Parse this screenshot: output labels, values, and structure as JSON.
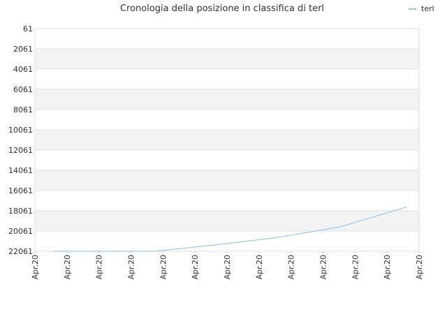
{
  "chart_data": {
    "type": "line",
    "title": "Cronologia della posizione in classifica di terl",
    "xlabel": "",
    "ylabel": "",
    "y_inverted": true,
    "ylim": [
      61,
      22061
    ],
    "y_ticks": [
      "61",
      "2061",
      "4061",
      "6061",
      "8061",
      "10061",
      "12061",
      "14061",
      "16061",
      "18061",
      "20061",
      "22061"
    ],
    "x_ticks": [
      "Apr.20",
      "Apr.20",
      "Apr.20",
      "Apr.20",
      "Apr.20",
      "Apr.20",
      "Apr.20",
      "Apr.20",
      "Apr.20",
      "Apr.20",
      "Apr.20",
      "Apr.20",
      "Apr.20"
    ],
    "grid": true,
    "legend_position": "top-right",
    "series": [
      {
        "name": "terl",
        "color": "#99c8ee",
        "points": [
          {
            "x": 0.6,
            "y": 22061
          },
          {
            "x": 1.5,
            "y": 22061
          },
          {
            "x": 2.5,
            "y": 22061
          },
          {
            "x": 3.5,
            "y": 22061
          },
          {
            "x": 3.75,
            "y": 22061
          },
          {
            "x": 5.6,
            "y": 21450
          },
          {
            "x": 7.5,
            "y": 20730
          },
          {
            "x": 9.5,
            "y": 19680
          },
          {
            "x": 11.6,
            "y": 17700
          }
        ]
      }
    ]
  }
}
